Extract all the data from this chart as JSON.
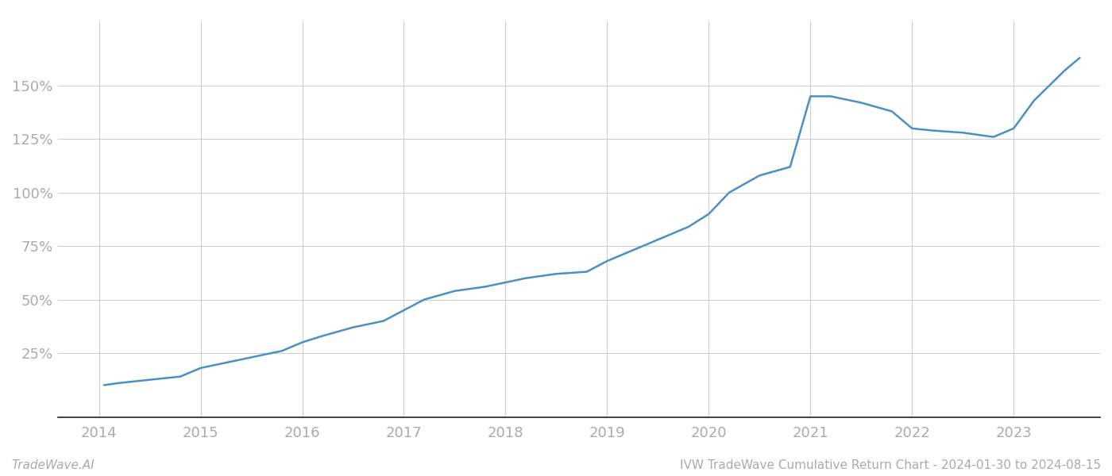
{
  "title": "IVW TradeWave Cumulative Return Chart - 2024-01-30 to 2024-08-15",
  "footer_left": "TradeWave.AI",
  "footer_right": "IVW TradeWave Cumulative Return Chart - 2024-01-30 to 2024-08-15",
  "line_color": "#4a90c4",
  "background_color": "#ffffff",
  "grid_color": "#cccccc",
  "tick_color": "#aaaaaa",
  "years": [
    2014.05,
    2014.2,
    2014.4,
    2014.6,
    2014.8,
    2015.0,
    2015.2,
    2015.5,
    2015.8,
    2016.0,
    2016.2,
    2016.5,
    2016.8,
    2017.0,
    2017.2,
    2017.5,
    2017.8,
    2018.0,
    2018.2,
    2018.5,
    2018.8,
    2019.0,
    2019.2,
    2019.5,
    2019.8,
    2020.0,
    2020.2,
    2020.5,
    2020.8,
    2021.0,
    2021.2,
    2021.5,
    2021.8,
    2022.0,
    2022.2,
    2022.5,
    2022.8,
    2023.0,
    2023.2,
    2023.5,
    2023.65
  ],
  "values": [
    10,
    11,
    12,
    13,
    14,
    18,
    20,
    23,
    26,
    30,
    33,
    37,
    40,
    45,
    50,
    54,
    56,
    58,
    60,
    62,
    63,
    68,
    72,
    78,
    84,
    90,
    100,
    108,
    112,
    145,
    145,
    142,
    138,
    130,
    129,
    128,
    126,
    130,
    143,
    157,
    163
  ],
  "yticks": [
    25,
    50,
    75,
    100,
    125,
    150
  ],
  "xticks": [
    2014,
    2015,
    2016,
    2017,
    2018,
    2019,
    2020,
    2021,
    2022,
    2023
  ],
  "ylim": [
    -5,
    180
  ],
  "xlim": [
    2013.6,
    2023.85
  ],
  "line_width": 1.8,
  "axis_label_color": "#aaaaaa",
  "spine_color": "#222222",
  "tick_fontsize": 13,
  "footer_fontsize": 11
}
